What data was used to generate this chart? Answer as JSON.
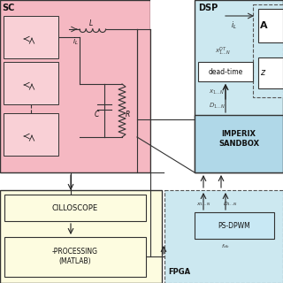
{
  "bg_color": "#ffffff",
  "pink_bg": "#f5b8c2",
  "pink_cell": "#f9d0d6",
  "cyan_bg": "#cce8f0",
  "cyan_imperix": "#b0d8e8",
  "yellow_bg": "#fdfce0",
  "edge_color": "#333333",
  "dsp_label": "DSP",
  "vsc_label": "SC",
  "fpga_label": "FPGA",
  "oscilloscope_label": "CILLOSCOPE",
  "processing_label": "-PROCESSING\n(MATLAB)",
  "imperix_label": "IMPERIX\nSANDBOX",
  "psdpwm_label": "PS-DPWM",
  "deadtime_label": "dead-time",
  "adc_label": "A",
  "z_label": "z",
  "iL_top": "i_L",
  "xDT_label": "x^{DT}_{1\\ldots N}",
  "x1N_label": "x_{1\\ldots N}",
  "D1N_label": "D_{1\\ldots N}",
  "x1N_fpga": "x_{1\\ldots N}",
  "D1N_fpga": "D_{1\\ldots N}",
  "fclk_label": "f_{clk}"
}
